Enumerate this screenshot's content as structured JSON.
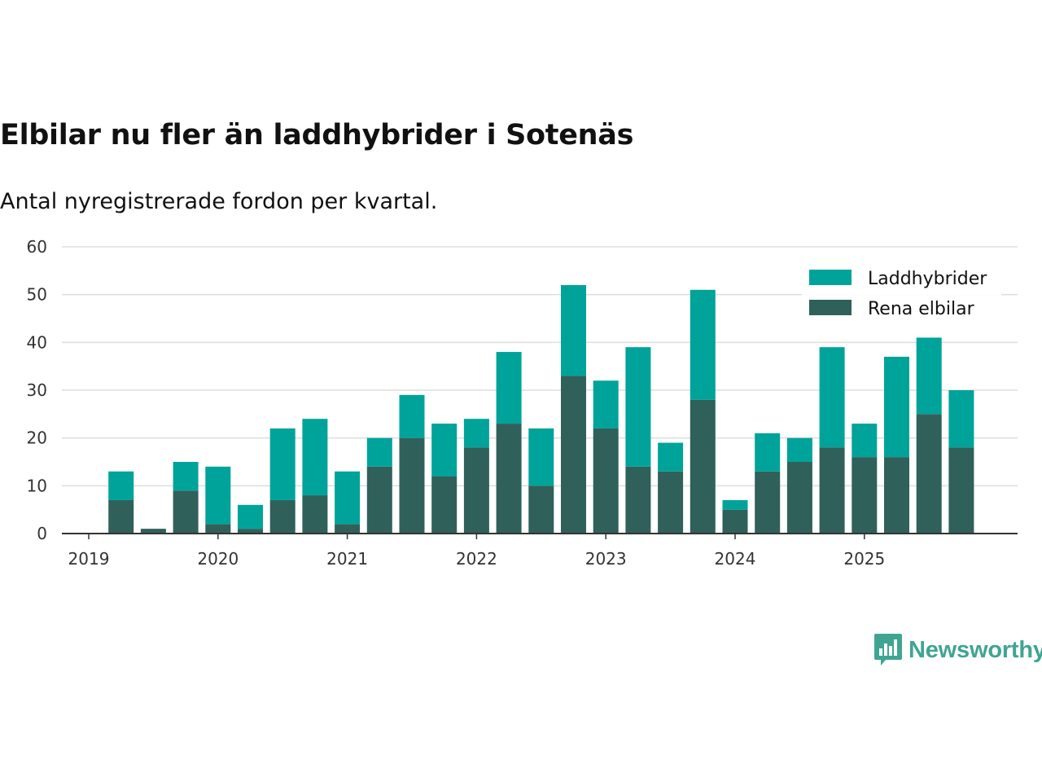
{
  "title": "Elbilar nu fler än laddhybrider i Sotenäs",
  "subtitle": "Antal nyregistrerade fordon per kvartal.",
  "brand": {
    "name": "Newsworthy",
    "icon": "newsworthy-logo-icon",
    "color": "#3fa592"
  },
  "colors": {
    "laddhybrider": "#00a39a",
    "rena_elbilar": "#30605a",
    "grid": "#dddddd",
    "axis": "#333333"
  },
  "chart_data": {
    "type": "bar",
    "stacked": true,
    "title": "Elbilar nu fler än laddhybrider i Sotenäs",
    "subtitle": "Antal nyregistrerade fordon per kvartal.",
    "xlabel": "",
    "ylabel": "",
    "ylim": [
      0,
      60
    ],
    "yticks": [
      0,
      10,
      20,
      30,
      40,
      50,
      60
    ],
    "xticks": [
      "2019",
      "2020",
      "2021",
      "2022",
      "2023",
      "2024",
      "2025"
    ],
    "legend_position": "top-right",
    "grid": true,
    "categories": [
      "2019 Q1",
      "2019 Q2",
      "2019 Q3",
      "2019 Q4",
      "2020 Q1",
      "2020 Q2",
      "2020 Q3",
      "2020 Q4",
      "2021 Q1",
      "2021 Q2",
      "2021 Q3",
      "2021 Q4",
      "2022 Q1",
      "2022 Q2",
      "2022 Q3",
      "2022 Q4",
      "2023 Q1",
      "2023 Q2",
      "2023 Q3",
      "2023 Q4",
      "2024 Q1",
      "2024 Q2",
      "2024 Q3",
      "2024 Q4",
      "2025 Q1",
      "2025 Q2",
      "2025 Q3",
      "2025 Q4"
    ],
    "series": [
      {
        "name": "Rena elbilar",
        "key": "rena_elbilar",
        "values": [
          0,
          7,
          1,
          9,
          2,
          1,
          7,
          8,
          2,
          14,
          20,
          12,
          18,
          23,
          10,
          33,
          22,
          14,
          13,
          28,
          5,
          13,
          15,
          18,
          16,
          16,
          25,
          18
        ]
      },
      {
        "name": "Laddhybrider",
        "key": "laddhybrider",
        "values": [
          0,
          6,
          0,
          6,
          12,
          5,
          15,
          16,
          11,
          6,
          9,
          11,
          6,
          15,
          12,
          19,
          10,
          25,
          6,
          23,
          2,
          8,
          5,
          21,
          7,
          21,
          16,
          12
        ]
      }
    ]
  }
}
